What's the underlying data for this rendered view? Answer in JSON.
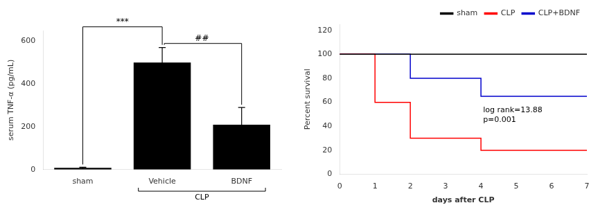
{
  "chart_data": [
    {
      "type": "bar",
      "categories": [
        "sham",
        "Vehicle",
        "BDNF"
      ],
      "values": [
        8,
        500,
        210
      ],
      "errors": [
        3,
        70,
        80
      ],
      "color": "#000000",
      "ylabel": "serum TNF-α (pg/mL)",
      "ylim": [
        0,
        650
      ],
      "yticks": [
        0,
        200,
        400,
        600
      ],
      "grid": false,
      "annotations": [
        "***",
        "##",
        "CLP"
      ]
    },
    {
      "type": "line",
      "series": [
        {
          "name": "sham",
          "color": "#000000",
          "x": [
            0,
            7
          ],
          "values": [
            100,
            100
          ]
        },
        {
          "name": "CLP",
          "color": "#ff0000",
          "x": [
            0,
            1,
            1,
            2,
            2,
            4,
            4,
            7
          ],
          "values": [
            100,
            100,
            60,
            60,
            30,
            30,
            20,
            20
          ]
        },
        {
          "name": "CLP+BDNF",
          "color": "#0000cc",
          "x": [
            0,
            1,
            1,
            2,
            2,
            4,
            4,
            7
          ],
          "values": [
            100,
            100,
            100,
            100,
            80,
            80,
            65,
            65
          ]
        }
      ],
      "xlabel": "days after CLP",
      "ylabel": "Percent survival",
      "xlim": [
        0,
        7
      ],
      "xticks": [
        0,
        1,
        2,
        3,
        4,
        5,
        6,
        7
      ],
      "ylim": [
        0,
        125
      ],
      "yticks": [
        0,
        20,
        40,
        60,
        80,
        100,
        120
      ],
      "grid": false,
      "legend": "upper right",
      "annotations": [
        "log rank=13.88\np=0.001"
      ]
    }
  ]
}
